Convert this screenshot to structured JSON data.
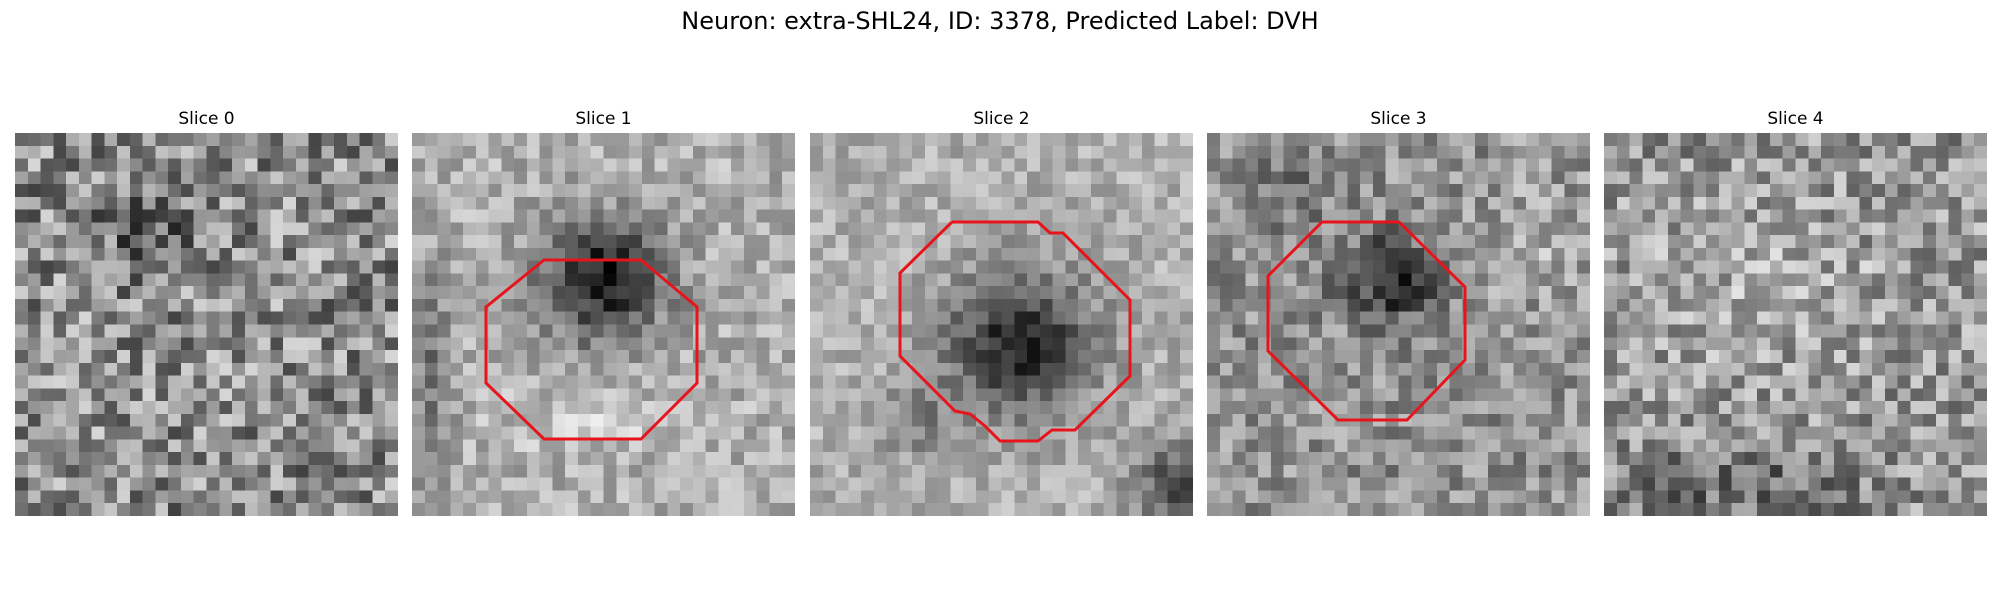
{
  "figure": {
    "title": "Neuron: extra-SHL24, ID: 3378, Predicted Label: DVH"
  },
  "slices": [
    {
      "title": "Slice 0",
      "has_contour": false,
      "blob": null
    },
    {
      "title": "Slice 1",
      "has_contour": true,
      "contour_color": "#e8141c",
      "blob": "dark-cell-upper"
    },
    {
      "title": "Slice 2",
      "has_contour": true,
      "contour_color": "#e8141c",
      "blob": "dark-cell-center"
    },
    {
      "title": "Slice 3",
      "has_contour": true,
      "contour_color": "#e8141c",
      "blob": "dark-cell-upper-small"
    },
    {
      "title": "Slice 4",
      "has_contour": false,
      "blob": null
    }
  ],
  "colormap": "gray",
  "colors": {
    "contour": "#e8141c",
    "background": "#ffffff"
  }
}
